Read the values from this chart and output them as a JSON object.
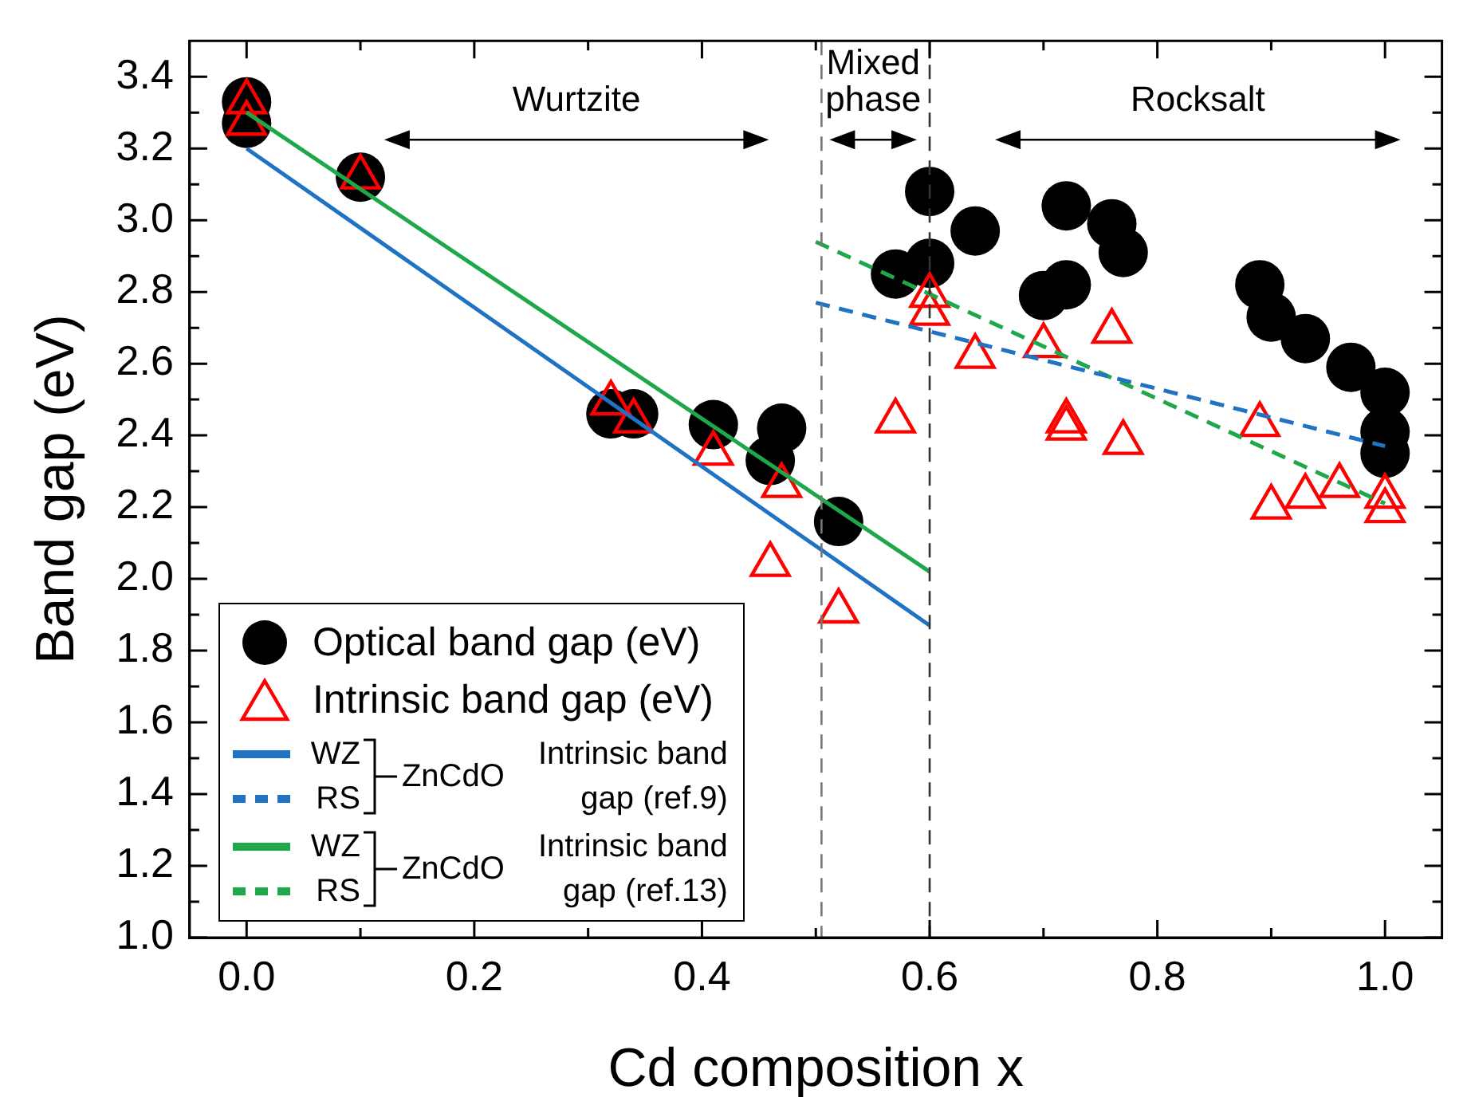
{
  "chart_data": {
    "type": "scatter",
    "xlabel": "Cd composition x",
    "ylabel": "Band gap (eV)",
    "xlim": [
      -0.05,
      1.05
    ],
    "ylim": [
      1.0,
      3.5
    ],
    "xticks": [
      {
        "value": 0,
        "label": "0.0"
      },
      {
        "value": 0.1,
        "label": null
      },
      0.2,
      {
        "value": 0.3,
        "label": null
      },
      0.4,
      {
        "value": 0.5,
        "label": null
      },
      0.6,
      {
        "value": 0.7,
        "label": null
      },
      0.8,
      {
        "value": 0.9,
        "label": null
      },
      {
        "value": 1,
        "label": "1.0"
      }
    ],
    "yticks": [
      {
        "value": 1,
        "label": "1.0"
      },
      {
        "value": 1.1,
        "label": null
      },
      1.2,
      {
        "value": 1.3,
        "label": null
      },
      1.4,
      {
        "value": 1.5,
        "label": null
      },
      1.6,
      {
        "value": 1.7,
        "label": null
      },
      1.8,
      {
        "value": 1.9,
        "label": null
      },
      {
        "value": 2,
        "label": "2.0"
      },
      {
        "value": 2.1,
        "label": null
      },
      2.2,
      {
        "value": 2.3,
        "label": null
      },
      2.4,
      {
        "value": 2.5,
        "label": null
      },
      2.6,
      {
        "value": 2.7,
        "label": null
      },
      2.8,
      {
        "value": 2.9,
        "label": null
      },
      {
        "value": 3,
        "label": "3.0"
      },
      {
        "value": 3.1,
        "label": null
      },
      3.2,
      {
        "value": 3.3,
        "label": null
      },
      3.4
    ],
    "legend": "bottom left",
    "series": [
      {
        "name": "Optical band gap (eV)",
        "type": "scatter",
        "marker": "circle",
        "color": "#000000",
        "x": [
          0,
          0,
          0.1,
          0.32,
          0.34,
          0.41,
          0.46,
          0.47,
          0.52,
          0.57,
          0.6,
          0.6,
          0.64,
          0.7,
          0.72,
          0.72,
          0.76,
          0.77,
          0.89,
          0.9,
          0.93,
          0.97,
          1.0,
          1.0,
          1.0
        ],
        "values": [
          3.33,
          3.27,
          3.12,
          2.46,
          2.46,
          2.43,
          2.33,
          2.42,
          2.16,
          2.85,
          3.08,
          2.88,
          2.97,
          2.79,
          3.04,
          2.82,
          2.99,
          2.91,
          2.82,
          2.73,
          2.67,
          2.59,
          2.52,
          2.41,
          2.35
        ]
      },
      {
        "name": "Intrinsic band gap (eV)",
        "type": "scatter",
        "marker": "triangle",
        "color": "#ff0000",
        "x": [
          0,
          0,
          0.1,
          0.32,
          0.34,
          0.41,
          0.46,
          0.47,
          0.52,
          0.57,
          0.6,
          0.6,
          0.64,
          0.7,
          0.72,
          0.72,
          0.76,
          0.77,
          0.89,
          0.9,
          0.93,
          0.96,
          1.0,
          1.0
        ],
        "values": [
          3.33,
          3.27,
          3.12,
          2.49,
          2.44,
          2.35,
          2.04,
          2.26,
          1.91,
          2.44,
          2.79,
          2.74,
          2.62,
          2.65,
          2.44,
          2.42,
          2.69,
          2.38,
          2.43,
          2.2,
          2.23,
          2.26,
          2.23,
          2.19
        ]
      },
      {
        "name": "WZ",
        "type": "line",
        "line_style": "solid",
        "color": "#1f73c2",
        "x": [
          0,
          0.6
        ],
        "values": [
          3.2,
          1.87
        ]
      },
      {
        "name": "RS",
        "type": "line",
        "line_style": "dashed",
        "color": "#1f73c2",
        "x": [
          0.5,
          1.0
        ],
        "values": [
          2.77,
          2.37
        ]
      },
      {
        "name": "WZ",
        "type": "line",
        "line_style": "solid",
        "color": "#1ea84a",
        "x": [
          0,
          0.6
        ],
        "values": [
          3.3,
          2.02
        ]
      },
      {
        "name": "RS",
        "type": "line",
        "line_style": "dashed",
        "color": "#1ea84a",
        "x": [
          0.5,
          1.0
        ],
        "values": [
          2.94,
          2.21
        ]
      }
    ],
    "ref_lines": [
      {
        "axis": "x",
        "value": 0.505,
        "color": "#777777",
        "line_style": "dashed"
      },
      {
        "axis": "x",
        "value": 0.6,
        "color": "#333333",
        "line_style": "dashed"
      }
    ],
    "annotations": [
      "Wurtzite",
      "Mixed phase",
      "Rocksalt",
      "ZnCdO",
      "Intrinsic band gap (ref.9)",
      "ZnCdO",
      "Intrinsic band gap (ref.13)"
    ]
  }
}
